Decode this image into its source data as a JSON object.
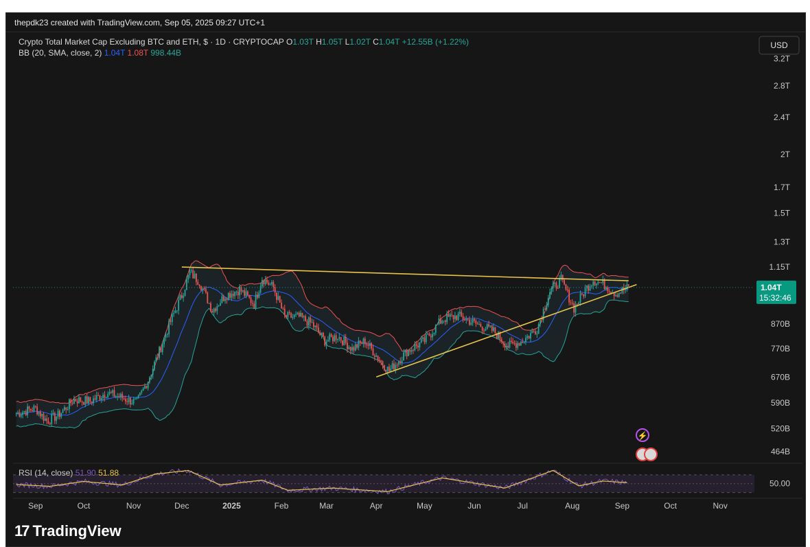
{
  "header": {
    "created_by": "thepdk23 created with TradingView.com, Sep 05, 2025 09:27 UTC+1"
  },
  "symbol": {
    "title": "Crypto Total Market Cap Excluding BTC and ETH, $ · 1D · CRYPTOCAP",
    "open_label": "O",
    "open": "1.03T",
    "high_label": "H",
    "high": "1.05T",
    "low_label": "L",
    "low": "1.02T",
    "close_label": "C",
    "close": "1.04T",
    "change": "+12.55B (+1.22%)"
  },
  "bb": {
    "label": "BB (20, SMA, close, 2)",
    "basis": "1.04T",
    "upper": "1.08T",
    "lower": "998.44B"
  },
  "rsi": {
    "label": "RSI (14, close)",
    "value": "51.90",
    "ma": "51.88",
    "level_label": "50.00"
  },
  "currency_button": "USD",
  "price_tag": {
    "value": "1.04T",
    "countdown": "15:32:46"
  },
  "brand": {
    "logo": "17",
    "name": "TradingView"
  },
  "colors": {
    "background": "#161616",
    "candle_up": "#26a69a",
    "candle_down": "#ef5350",
    "bb_upper": "#ef5350",
    "bb_basis": "#2962ff",
    "bb_lower": "#26a69a",
    "trendline": "#e8c44a",
    "rsi_line": "#7e57c2",
    "rsi_ma": "#e8c44a",
    "price_tag": "#089981"
  },
  "chart_data": {
    "type": "candlestick",
    "title": "Crypto Total Market Cap Excluding BTC and ETH, $ · 1D · CRYPTOCAP",
    "scale": "log",
    "y_ticks": [
      "3.2T",
      "2.8T",
      "2.4T",
      "2T",
      "1.7T",
      "1.5T",
      "1.3T",
      "1.15T",
      "870B",
      "770B",
      "670B",
      "590B",
      "520B",
      "464B"
    ],
    "y_tick_values": [
      3200,
      2800,
      2400,
      2000,
      1700,
      1500,
      1300,
      1150,
      870,
      770,
      670,
      590,
      520,
      464
    ],
    "x_ticks": [
      "Sep",
      "Oct",
      "Nov",
      "Dec",
      "2025",
      "Feb",
      "Mar",
      "Apr",
      "May",
      "Jun",
      "Jul",
      "Aug",
      "Sep",
      "Oct",
      "Nov"
    ],
    "x_tick_dates": [
      "2024-09-01",
      "2024-10-01",
      "2024-11-01",
      "2024-12-01",
      "2025-01-01",
      "2025-02-01",
      "2025-03-01",
      "2025-04-01",
      "2025-05-01",
      "2025-06-01",
      "2025-07-01",
      "2025-08-01",
      "2025-09-01",
      "2025-10-01",
      "2025-11-01"
    ],
    "ylim": [
      440,
      3500
    ],
    "xlim": [
      "2024-08-18",
      "2025-11-18"
    ],
    "close_series": [
      {
        "date": "2024-08-20",
        "value": 560
      },
      {
        "date": "2024-09-01",
        "value": 575
      },
      {
        "date": "2024-09-08",
        "value": 540
      },
      {
        "date": "2024-09-15",
        "value": 555
      },
      {
        "date": "2024-09-25",
        "value": 600
      },
      {
        "date": "2024-10-05",
        "value": 595
      },
      {
        "date": "2024-10-15",
        "value": 620
      },
      {
        "date": "2024-10-25",
        "value": 605
      },
      {
        "date": "2024-11-03",
        "value": 590
      },
      {
        "date": "2024-11-10",
        "value": 660
      },
      {
        "date": "2024-11-17",
        "value": 760
      },
      {
        "date": "2024-11-24",
        "value": 880
      },
      {
        "date": "2024-12-01",
        "value": 1000
      },
      {
        "date": "2024-12-06",
        "value": 1120
      },
      {
        "date": "2024-12-12",
        "value": 1070
      },
      {
        "date": "2024-12-20",
        "value": 930
      },
      {
        "date": "2024-12-28",
        "value": 1000
      },
      {
        "date": "2025-01-06",
        "value": 1030
      },
      {
        "date": "2025-01-15",
        "value": 960
      },
      {
        "date": "2025-01-20",
        "value": 1090
      },
      {
        "date": "2025-01-27",
        "value": 1040
      },
      {
        "date": "2025-02-03",
        "value": 900
      },
      {
        "date": "2025-02-12",
        "value": 900
      },
      {
        "date": "2025-02-20",
        "value": 870
      },
      {
        "date": "2025-02-28",
        "value": 800
      },
      {
        "date": "2025-03-08",
        "value": 820
      },
      {
        "date": "2025-03-17",
        "value": 770
      },
      {
        "date": "2025-03-25",
        "value": 800
      },
      {
        "date": "2025-04-03",
        "value": 730
      },
      {
        "date": "2025-04-09",
        "value": 690
      },
      {
        "date": "2025-04-20",
        "value": 760
      },
      {
        "date": "2025-05-01",
        "value": 800
      },
      {
        "date": "2025-05-12",
        "value": 890
      },
      {
        "date": "2025-05-22",
        "value": 905
      },
      {
        "date": "2025-06-02",
        "value": 870
      },
      {
        "date": "2025-06-13",
        "value": 840
      },
      {
        "date": "2025-06-22",
        "value": 780
      },
      {
        "date": "2025-07-01",
        "value": 800
      },
      {
        "date": "2025-07-10",
        "value": 850
      },
      {
        "date": "2025-07-18",
        "value": 1020
      },
      {
        "date": "2025-07-25",
        "value": 1080
      },
      {
        "date": "2025-08-02",
        "value": 940
      },
      {
        "date": "2025-08-10",
        "value": 1040
      },
      {
        "date": "2025-08-14",
        "value": 1080
      },
      {
        "date": "2025-08-22",
        "value": 1050
      },
      {
        "date": "2025-08-28",
        "value": 1010
      },
      {
        "date": "2025-09-05",
        "value": 1040
      }
    ],
    "trendlines": [
      {
        "name": "resistance",
        "from": {
          "date": "2024-12-01",
          "value": 1150
        },
        "to": {
          "date": "2025-09-05",
          "value": 1075
        }
      },
      {
        "name": "support",
        "from": {
          "date": "2025-04-01",
          "value": 670
        },
        "to": {
          "date": "2025-09-10",
          "value": 1055
        }
      }
    ],
    "last_price": 1040,
    "rsi_pane": {
      "level": 50,
      "series": [
        {
          "date": "2024-08-20",
          "value": 48
        },
        {
          "date": "2024-09-10",
          "value": 44
        },
        {
          "date": "2024-10-01",
          "value": 55
        },
        {
          "date": "2024-10-25",
          "value": 47
        },
        {
          "date": "2024-11-15",
          "value": 72
        },
        {
          "date": "2024-12-05",
          "value": 80
        },
        {
          "date": "2024-12-25",
          "value": 47
        },
        {
          "date": "2025-01-20",
          "value": 58
        },
        {
          "date": "2025-02-05",
          "value": 35
        },
        {
          "date": "2025-03-05",
          "value": 40
        },
        {
          "date": "2025-04-08",
          "value": 32
        },
        {
          "date": "2025-05-12",
          "value": 63
        },
        {
          "date": "2025-06-20",
          "value": 40
        },
        {
          "date": "2025-07-20",
          "value": 80
        },
        {
          "date": "2025-08-05",
          "value": 45
        },
        {
          "date": "2025-08-20",
          "value": 56
        },
        {
          "date": "2025-09-05",
          "value": 52
        }
      ]
    }
  }
}
